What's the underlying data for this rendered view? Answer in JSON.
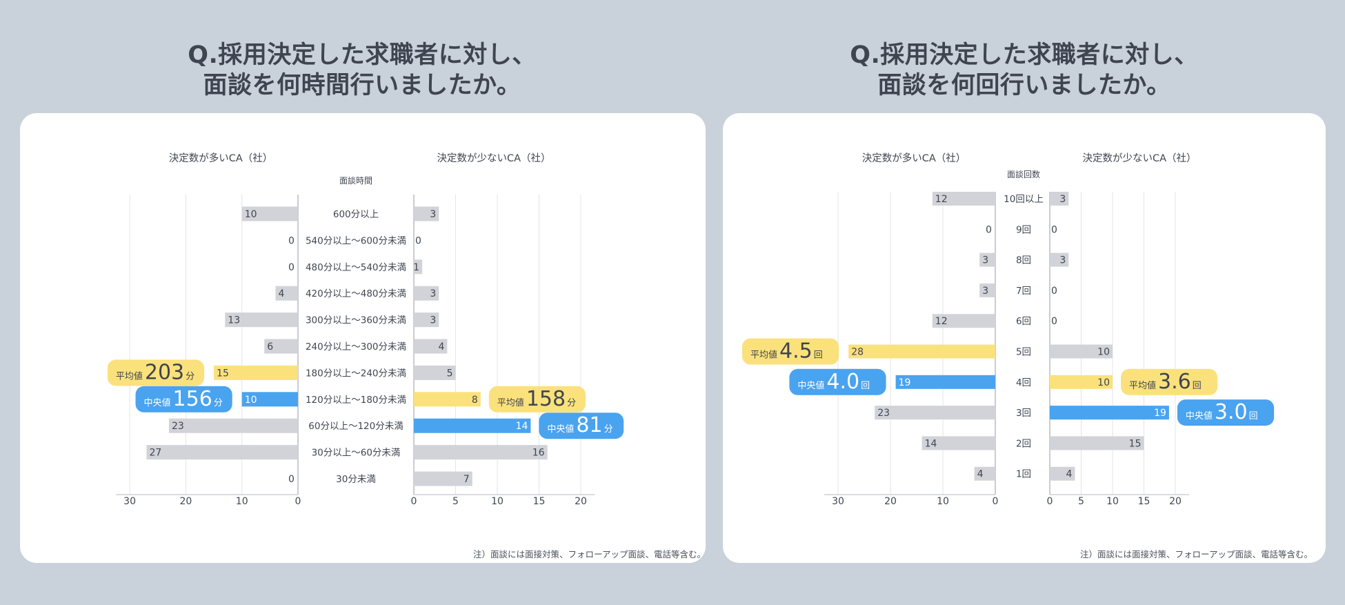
{
  "titles": {
    "left": [
      "Q.採用決定した求職者に対し、",
      "面談を何時間行いましたか。"
    ],
    "right": [
      "Q.採用決定した求職者に対し、",
      "面談を何回行いましたか。"
    ]
  },
  "notes": {
    "left": "注）面談には面接対策、フォローアップ面談、電話等含む。",
    "right": "注）面談には面接対策、フォローアップ面談、電話等含む。"
  },
  "colors": {
    "background": "#c9d1db",
    "gray_bar": "#d1d3d8",
    "yellow_highlight": "#fbe17c",
    "blue_highlight": "#4aa3ef",
    "title_text": "#3f4550"
  },
  "chart_data": [
    {
      "type": "bar",
      "orientation": "horizontal-butterfly",
      "left_header": "決定数が多いCA（社）",
      "right_header": "決定数が少ないCA（社）",
      "category_header": "面談時間",
      "categories": [
        "600分以上",
        "540分以上〜600分未満",
        "480分以上〜540分未満",
        "420分以上〜480分未満",
        "300分以上〜360分未満",
        "240分以上〜300分未満",
        "180分以上〜240分未満",
        "120分以上〜180分未満",
        "60分以上〜120分未満",
        "30分以上〜60分未満",
        "30分未満"
      ],
      "series": [
        {
          "name": "決定数が多いCA（社）",
          "values": [
            10,
            0,
            0,
            4,
            13,
            6,
            15,
            10,
            23,
            27,
            0
          ],
          "highlight": [
            "gray",
            "gray",
            "gray",
            "gray",
            "gray",
            "gray",
            "yellow",
            "blue",
            "gray",
            "gray",
            "gray"
          ]
        },
        {
          "name": "決定数が少ないCA（社）",
          "values": [
            3,
            0,
            1,
            3,
            3,
            4,
            5,
            8,
            14,
            16,
            7
          ],
          "highlight": [
            "gray",
            "gray",
            "gray",
            "gray",
            "gray",
            "gray",
            "gray",
            "yellow",
            "blue",
            "gray",
            "gray"
          ]
        }
      ],
      "left_axis": {
        "ticks": [
          "30",
          "20",
          "10",
          "0"
        ],
        "max": 30
      },
      "right_axis": {
        "ticks": [
          "0",
          "5",
          "10",
          "15",
          "20"
        ],
        "max": 20
      },
      "grid": true,
      "annotations": {
        "left_mean": {
          "label": "平均値",
          "value": "203",
          "unit": "分",
          "category_index": 6
        },
        "left_median": {
          "label": "中央値",
          "value": "156",
          "unit": "分",
          "category_index": 7
        },
        "right_mean": {
          "label": "平均値",
          "value": "158",
          "unit": "分",
          "category_index": 7
        },
        "right_median": {
          "label": "中央値",
          "value": "81",
          "unit": "分",
          "category_index": 8
        }
      }
    },
    {
      "type": "bar",
      "orientation": "horizontal-butterfly",
      "left_header": "決定数が多いCA（社）",
      "right_header": "決定数が少ないCA（社）",
      "category_header": "面談回数",
      "categories": [
        "10回以上",
        "9回",
        "8回",
        "7回",
        "6回",
        "5回",
        "4回",
        "3回",
        "2回",
        "1回"
      ],
      "series": [
        {
          "name": "決定数が多いCA（社）",
          "values": [
            12,
            0,
            3,
            3,
            12,
            28,
            19,
            23,
            14,
            4
          ],
          "highlight": [
            "gray",
            "gray",
            "gray",
            "gray",
            "gray",
            "yellow",
            "blue",
            "gray",
            "gray",
            "gray"
          ]
        },
        {
          "name": "決定数が少ないCA（社）",
          "values": [
            3,
            0,
            3,
            0,
            0,
            10,
            10,
            19,
            15,
            4
          ],
          "highlight": [
            "gray",
            "gray",
            "gray",
            "gray",
            "gray",
            "gray",
            "yellow",
            "blue",
            "gray",
            "gray"
          ]
        }
      ],
      "left_axis": {
        "ticks": [
          "30",
          "20",
          "10",
          "0"
        ],
        "max": 30
      },
      "right_axis": {
        "ticks": [
          "0",
          "5",
          "10",
          "15",
          "20"
        ],
        "max": 20
      },
      "grid": true,
      "annotations": {
        "left_mean": {
          "label": "平均値",
          "value": "4.5",
          "unit": "回",
          "category_index": 5
        },
        "left_median": {
          "label": "中央値",
          "value": "4.0",
          "unit": "回",
          "category_index": 6
        },
        "right_mean": {
          "label": "平均値",
          "value": "3.6",
          "unit": "回",
          "category_index": 6
        },
        "right_median": {
          "label": "中央値",
          "value": "3.0",
          "unit": "回",
          "category_index": 7
        }
      }
    }
  ]
}
